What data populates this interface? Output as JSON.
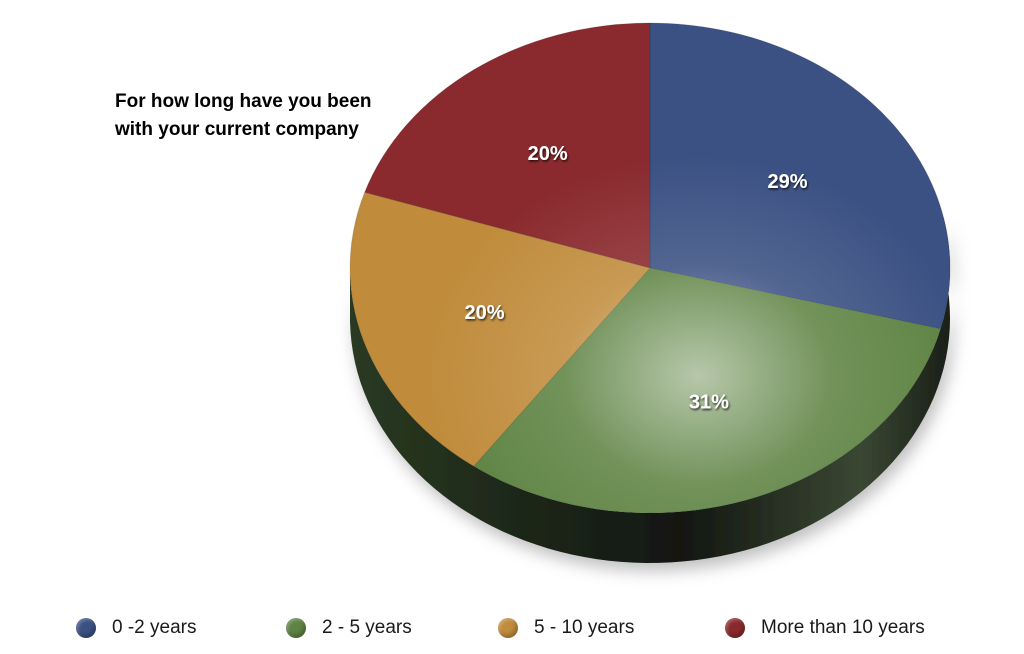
{
  "chart_data": {
    "type": "pie",
    "title": "For how long have you been\nwith your current company",
    "categories": [
      "0 -2 years",
      "2 - 5 years",
      "5 - 10 years",
      "More than 10 years"
    ],
    "values": [
      29,
      31,
      20,
      20
    ],
    "value_labels": [
      "29%",
      "31%",
      "20%",
      "20%"
    ],
    "colors": [
      "#3b5183",
      "#5e8343",
      "#c08c3c",
      "#8a2a2e"
    ],
    "legend_position": "bottom"
  }
}
